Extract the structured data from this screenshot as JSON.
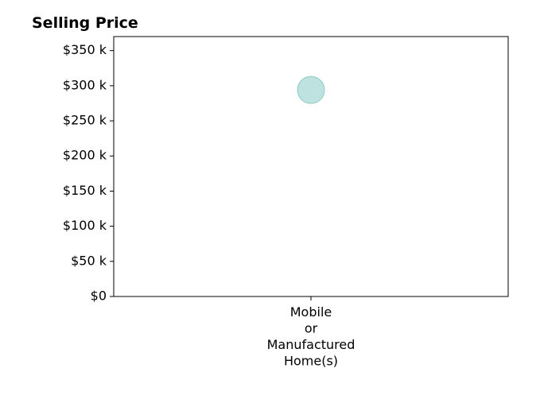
{
  "chart_data": {
    "type": "scatter",
    "title": "Selling Price",
    "xlabel": "",
    "ylabel": "",
    "categories": [
      "Mobile\nor\nManufactured\nHome(s)"
    ],
    "series": [
      {
        "values": [
          294000
        ]
      }
    ],
    "ylim": [
      0,
      370000
    ],
    "yticks": [
      0,
      50000,
      100000,
      150000,
      200000,
      250000,
      300000,
      350000
    ],
    "ytick_labels": [
      "$0",
      "$50 k",
      "$100 k",
      "$150 k",
      "$200 k",
      "$250 k",
      "$300 k",
      "$350 k"
    ],
    "grid": false,
    "legend": "none",
    "colors": {
      "point_fill": "#a8d8d4",
      "point_stroke": "#8ecbc6",
      "axis": "#000000"
    }
  }
}
